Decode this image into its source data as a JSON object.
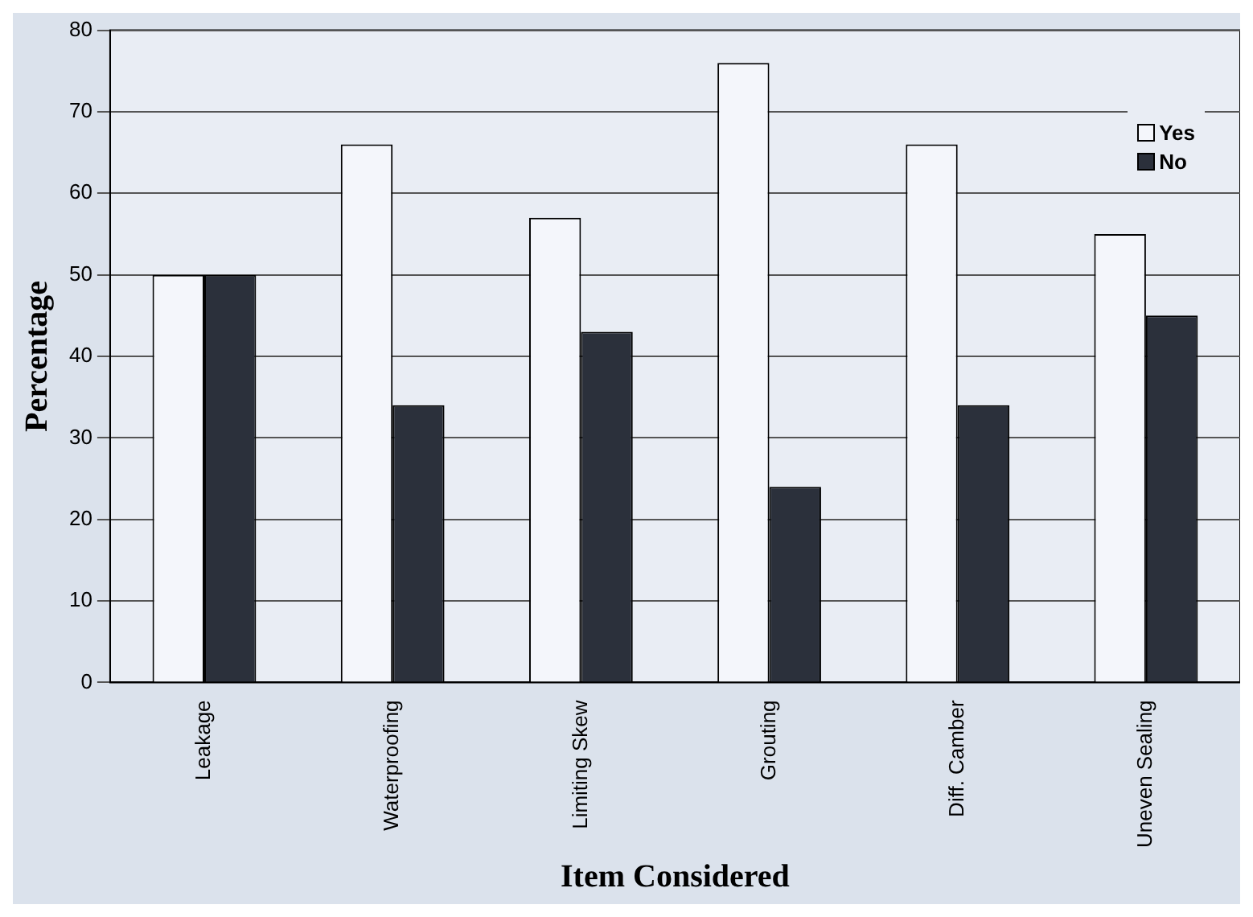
{
  "chart_data": {
    "type": "bar",
    "xlabel": "Item Considered",
    "ylabel": "Percentage",
    "categories": [
      "Leakage",
      "Waterproofing",
      "Limiting Skew",
      "Grouting",
      "Diff. Camber",
      "Uneven Sealing"
    ],
    "series": [
      {
        "name": "Yes",
        "color": "#f4f6fb",
        "values": [
          50,
          66,
          57,
          76,
          66,
          55
        ]
      },
      {
        "name": "No",
        "color": "#2b303b",
        "values": [
          50,
          34,
          43,
          24,
          34,
          45
        ]
      }
    ],
    "ylim": [
      0,
      80
    ],
    "yticks": [
      0,
      10,
      20,
      30,
      40,
      50,
      60,
      70,
      80
    ],
    "grid": "y",
    "legend": "top right"
  }
}
